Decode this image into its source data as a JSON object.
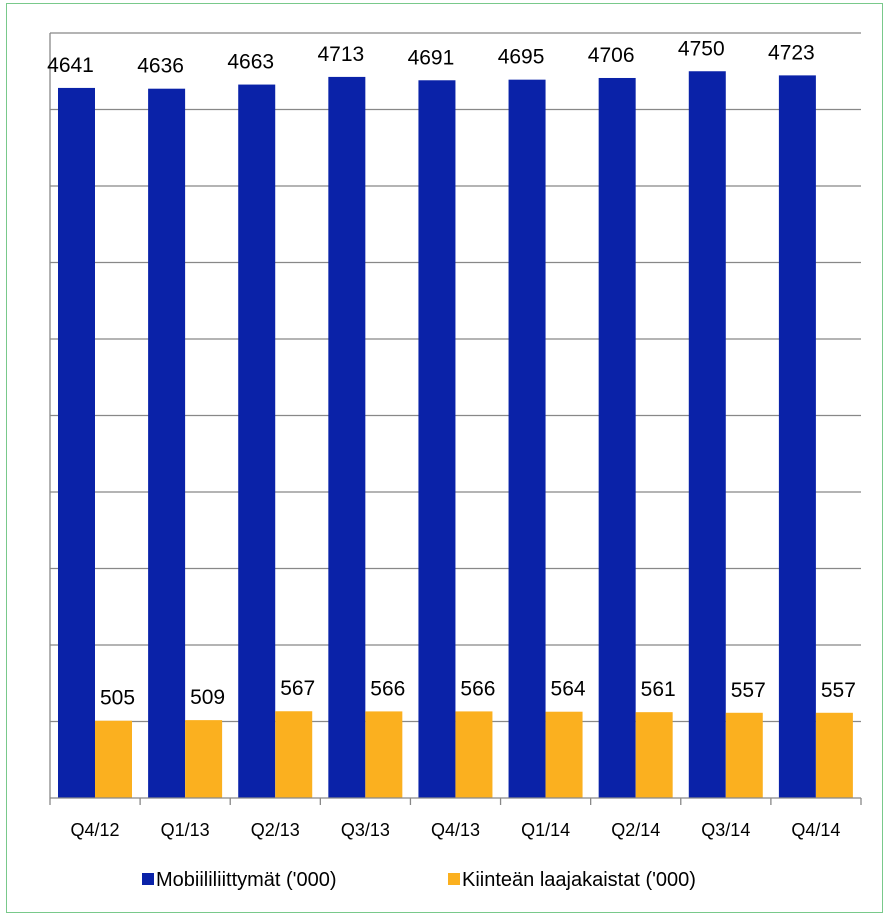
{
  "chart_data": {
    "type": "bar",
    "categories": [
      "Q4/12",
      "Q1/13",
      "Q2/13",
      "Q3/13",
      "Q4/13",
      "Q1/14",
      "Q2/14",
      "Q3/14",
      "Q4/14"
    ],
    "series": [
      {
        "name": "Mobiililiittymät ('000)",
        "color": "#0a22a8",
        "values": [
          4641,
          4636,
          4663,
          4713,
          4691,
          4695,
          4706,
          4750,
          4723
        ]
      },
      {
        "name": "Kiinteän laajakaistat ('000)",
        "color": "#fbb01f",
        "values": [
          505,
          509,
          567,
          566,
          566,
          564,
          561,
          557,
          557
        ]
      }
    ],
    "ylim": [
      0,
      5000
    ],
    "grid": true,
    "legend": "bottom"
  }
}
